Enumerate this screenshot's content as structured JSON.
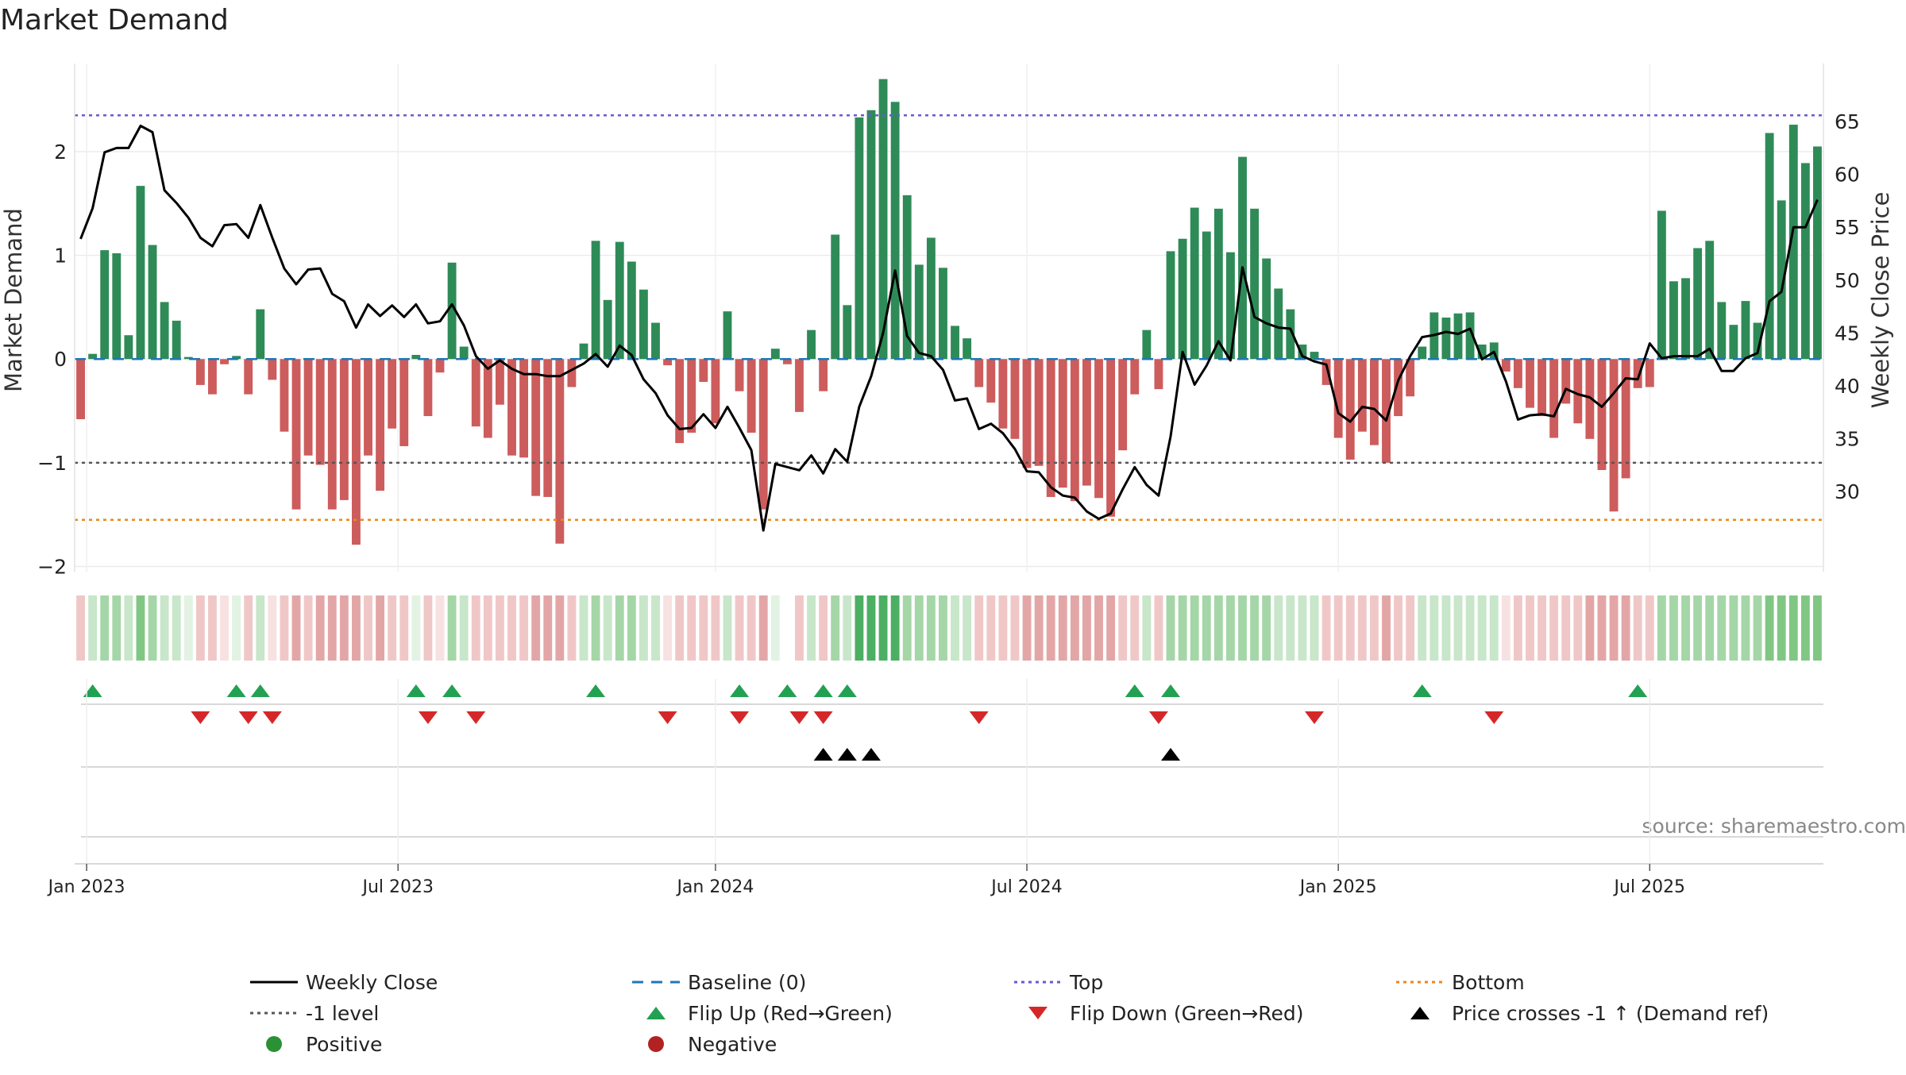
{
  "chart_data": {
    "type": "bar",
    "title": "Market Demand",
    "ylabel": "Market Demand",
    "y2label": "Weekly Close Price",
    "source": "source: sharemaestro.com",
    "ylim": [
      -2.05,
      2.85
    ],
    "y2lim": [
      22.4,
      70.5
    ],
    "xlim": [
      0,
      146
    ],
    "yticks": [
      2,
      1,
      0,
      -1,
      -2
    ],
    "yticklabels": [
      "2",
      "1",
      "0",
      "−1",
      "−2"
    ],
    "y2ticks": [
      65,
      60,
      55,
      50,
      45,
      40,
      35,
      30
    ],
    "xticks": [
      {
        "x": 1,
        "label": "Jan 2023"
      },
      {
        "x": 27,
        "label": "Jul 2023"
      },
      {
        "x": 53.5,
        "label": "Jan 2024"
      },
      {
        "x": 79.5,
        "label": "Jul 2024"
      },
      {
        "x": 105.5,
        "label": "Jan 2025"
      },
      {
        "x": 131.5,
        "label": "Jul 2025"
      }
    ],
    "reference_lines": {
      "top": 2.35,
      "minus_one": -1.0,
      "bottom": -1.55,
      "baseline": 0
    },
    "demand": [
      -0.58,
      0.05,
      1.05,
      1.02,
      0.23,
      1.67,
      1.1,
      0.55,
      0.37,
      0.02,
      -0.25,
      -0.34,
      -0.05,
      0.03,
      -0.34,
      0.48,
      -0.2,
      -0.7,
      -1.45,
      -0.93,
      -1.02,
      -1.45,
      -1.36,
      -1.79,
      -0.93,
      -1.27,
      -0.67,
      -0.84,
      0.04,
      -0.55,
      -0.13,
      0.93,
      0.12,
      -0.65,
      -0.76,
      -0.44,
      -0.93,
      -0.95,
      -1.32,
      -1.33,
      -1.78,
      -0.27,
      0.15,
      1.14,
      0.57,
      1.13,
      0.94,
      0.67,
      0.35,
      -0.06,
      -0.81,
      -0.71,
      -0.22,
      -0.62,
      0.46,
      -0.31,
      -0.71,
      -1.45,
      0.1,
      -0.05,
      -0.51,
      0.28,
      -0.31,
      1.2,
      0.52,
      2.33,
      2.4,
      2.7,
      2.48,
      1.58,
      0.91,
      1.17,
      0.88,
      0.32,
      0.2,
      -0.27,
      -0.42,
      -0.67,
      -0.77,
      -1.05,
      -1.03,
      -1.33,
      -1.24,
      -1.37,
      -1.22,
      -1.34,
      -1.52,
      -0.88,
      -0.34,
      0.28,
      -0.29,
      1.04,
      1.16,
      1.46,
      1.23,
      1.45,
      1.03,
      1.95,
      1.45,
      0.97,
      0.68,
      0.48,
      0.14,
      0.07,
      -0.25,
      -0.76,
      -0.97,
      -0.7,
      -0.83,
      -1.0,
      -0.55,
      -0.36,
      0.12,
      0.45,
      0.4,
      0.44,
      0.45,
      0.14,
      0.16,
      -0.12,
      -0.28,
      -0.47,
      -0.55,
      -0.76,
      -0.43,
      -0.62,
      -0.77,
      -1.07,
      -1.47,
      -1.15,
      -0.28,
      -0.27,
      1.43,
      0.75,
      0.78,
      1.07,
      1.14,
      0.55,
      0.33,
      0.56,
      0.35,
      2.18,
      1.53,
      2.26,
      1.89,
      2.05
    ],
    "close": [
      53.9,
      56.8,
      62.1,
      62.5,
      62.5,
      64.6,
      64.0,
      58.5,
      57.3,
      55.9,
      54.0,
      53.2,
      55.2,
      55.3,
      54.0,
      57.1,
      54.0,
      51.1,
      49.6,
      51.0,
      51.1,
      48.7,
      48.0,
      45.5,
      47.7,
      46.6,
      47.6,
      46.5,
      47.7,
      45.9,
      46.1,
      47.7,
      45.7,
      42.8,
      41.6,
      42.4,
      41.6,
      41.1,
      41.1,
      40.9,
      40.9,
      41.5,
      42.1,
      43.0,
      41.8,
      43.8,
      42.9,
      40.6,
      39.3,
      37.2,
      35.9,
      36.0,
      37.3,
      36.0,
      38.0,
      36.0,
      33.9,
      26.3,
      32.6,
      32.3,
      32.0,
      33.4,
      31.7,
      34.0,
      32.8,
      38.0,
      40.9,
      45.0,
      50.9,
      44.7,
      43.1,
      42.8,
      41.5,
      38.6,
      38.8,
      35.9,
      36.4,
      35.5,
      34.0,
      31.9,
      31.8,
      30.4,
      29.6,
      29.4,
      28.1,
      27.4,
      27.9,
      30.2,
      32.3,
      30.6,
      29.6,
      35.2,
      43.2,
      40.1,
      41.9,
      44.2,
      42.4,
      51.2,
      46.5,
      45.9,
      45.5,
      45.4,
      42.8,
      42.3,
      42.0,
      37.4,
      36.6,
      38.0,
      37.8,
      36.7,
      40.5,
      42.8,
      44.6,
      44.8,
      45.1,
      44.9,
      45.4,
      42.5,
      43.2,
      40.4,
      36.8,
      37.2,
      37.3,
      37.1,
      39.7,
      39.2,
      38.9,
      38.0,
      39.3,
      40.7,
      40.6,
      44.0,
      42.6,
      42.8,
      42.8,
      42.8,
      43.5,
      41.4,
      41.4,
      42.6,
      43.1,
      48.0,
      48.9,
      55.0,
      55.0,
      57.6
    ],
    "strip_shades": [
      "r1",
      "g1",
      "g2",
      "g2",
      "g1",
      "g3",
      "g2",
      "g1",
      "g1",
      "g0",
      "r1",
      "r1",
      "r0",
      "g0",
      "r1",
      "g1",
      "r0",
      "r1",
      "r2",
      "r1",
      "r2",
      "r2",
      "r2",
      "r2",
      "r1",
      "r2",
      "r1",
      "r1",
      "g0",
      "r1",
      "r0",
      "g2",
      "g1",
      "r1",
      "r1",
      "r1",
      "r1",
      "r1",
      "r2",
      "r2",
      "r2",
      "r1",
      "g1",
      "g2",
      "g1",
      "g2",
      "g2",
      "g1",
      "g1",
      "r0",
      "r1",
      "r1",
      "r1",
      "r1",
      "g1",
      "r1",
      "r1",
      "r2",
      "g0",
      "null",
      "r1",
      "g1",
      "r1",
      "g2",
      "g1",
      "g4",
      "g4",
      "g4",
      "g4",
      "g2",
      "g2",
      "g2",
      "g2",
      "g1",
      "g1",
      "r1",
      "r1",
      "r1",
      "r1",
      "r2",
      "r2",
      "r2",
      "r2",
      "r2",
      "r2",
      "r2",
      "r2",
      "r1",
      "r1",
      "g1",
      "r1",
      "g2",
      "g2",
      "g2",
      "g2",
      "g2",
      "g2",
      "g2",
      "g2",
      "g2",
      "g1",
      "g1",
      "g1",
      "g1",
      "r1",
      "r1",
      "r1",
      "r1",
      "r1",
      "r2",
      "r1",
      "r1",
      "g1",
      "g1",
      "g1",
      "g1",
      "g1",
      "g1",
      "g1",
      "r0",
      "r1",
      "r1",
      "r1",
      "r1",
      "r1",
      "r1",
      "r2",
      "r2",
      "r2",
      "r2",
      "r1",
      "r1",
      "g2",
      "g2",
      "g2",
      "g2",
      "g2",
      "g2",
      "g2",
      "g2",
      "g2",
      "g3",
      "g3",
      "g3",
      "g3",
      "g3"
    ],
    "strip_colors": {
      "g0": "#e2f2e3",
      "g1": "#c8e6c9",
      "g2": "#a5d6a7",
      "g3": "#81c784",
      "g4": "#4caf63",
      "r0": "#f8e1e1",
      "r1": "#f0c7c7",
      "r2": "#e3a6a6"
    },
    "flip_up": [
      1,
      13,
      15,
      28,
      31,
      43,
      55,
      59,
      62,
      64,
      88,
      91,
      112,
      130
    ],
    "flip_down": [
      10,
      14,
      16,
      29,
      33,
      49,
      55,
      60,
      62,
      75,
      90,
      103,
      118
    ],
    "price_cross": [
      62,
      64,
      66,
      91
    ],
    "legend": [
      {
        "label": "Weekly Close",
        "marker": "line-solid",
        "color": "#000000"
      },
      {
        "label": "Baseline (0)",
        "marker": "line-dash",
        "color": "#1f77b4"
      },
      {
        "label": "Top",
        "marker": "line-dot",
        "color": "#6a5acd"
      },
      {
        "label": "Bottom",
        "marker": "line-dot",
        "color": "#e8891a"
      },
      {
        "label": "-1 level",
        "marker": "line-dot",
        "color": "#555555"
      },
      {
        "label": "Flip Up (Red→Green)",
        "marker": "tri-up",
        "color": "#22a152"
      },
      {
        "label": "Flip Down (Green→Red)",
        "marker": "tri-down",
        "color": "#d62728"
      },
      {
        "label": "Price crosses -1 ↑ (Demand ref)",
        "marker": "tri-up",
        "color": "#000000"
      },
      {
        "label": "Positive",
        "marker": "dot",
        "color": "#2a9134"
      },
      {
        "label": "Negative",
        "marker": "dot",
        "color": "#b22222"
      }
    ],
    "colors": {
      "positive": "#2e8b57",
      "negative": "#cd5c5c",
      "flip_up": "#22a152",
      "flip_down": "#d62728",
      "price_cross": "#000000",
      "close": "#000000"
    }
  }
}
